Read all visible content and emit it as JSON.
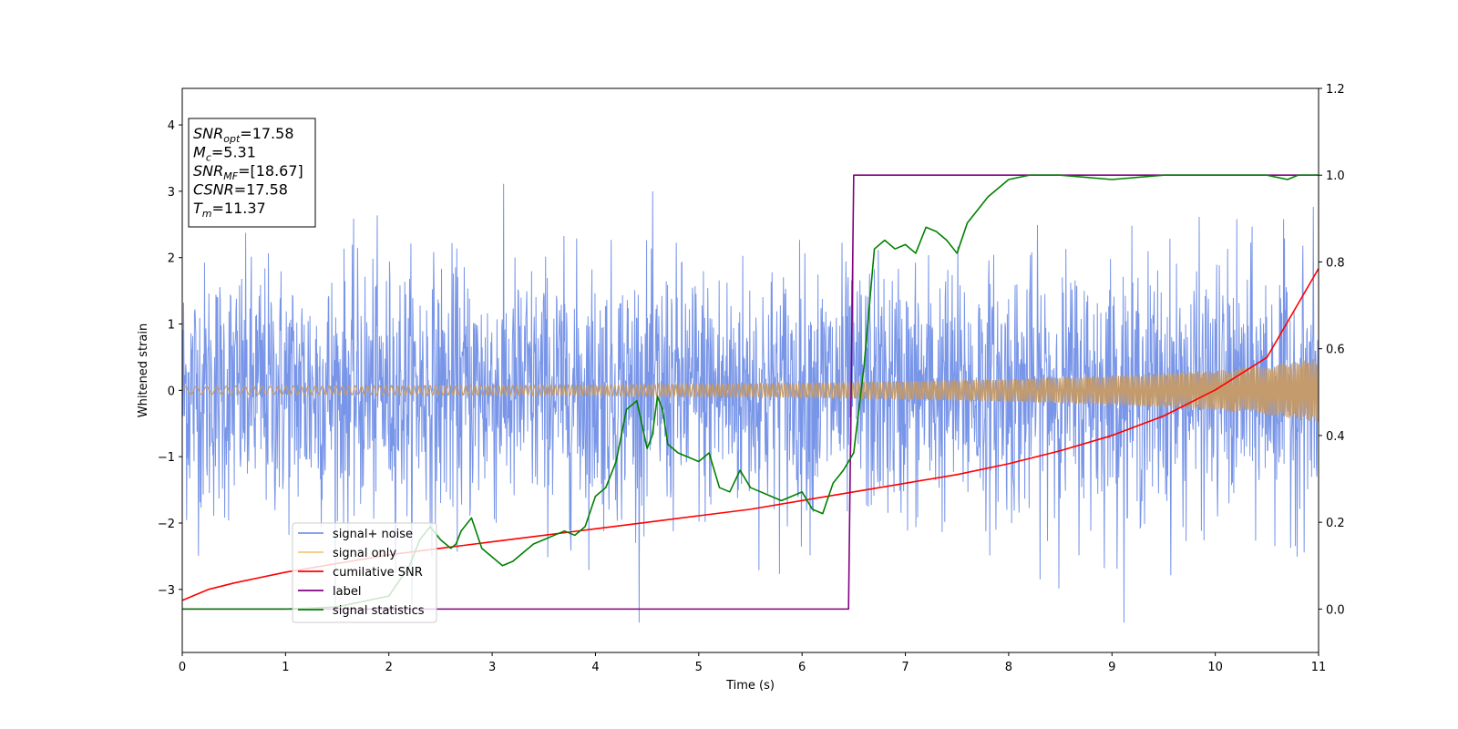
{
  "chart_data": {
    "type": "line",
    "xlabel": "Time (s)",
    "ylabel": "Whitened strain",
    "xlim": [
      0,
      11
    ],
    "ylim_left": [
      -3.95,
      4.55
    ],
    "ylim_right": [
      -0.1,
      1.2
    ],
    "x_ticks": [
      0,
      1,
      2,
      3,
      4,
      5,
      6,
      7,
      8,
      9,
      10,
      11
    ],
    "y_ticks_left": [
      -3,
      -2,
      -1,
      0,
      1,
      2,
      3,
      4
    ],
    "y_ticks_right": [
      0.0,
      0.2,
      0.4,
      0.6,
      0.8,
      1.0,
      1.2
    ],
    "x_tick_labels": [
      "0",
      "1",
      "2",
      "3",
      "4",
      "5",
      "6",
      "7",
      "8",
      "9",
      "10",
      "11"
    ],
    "y_tick_labels_left": [
      "−3",
      "−2",
      "−1",
      "0",
      "1",
      "2",
      "3",
      "4"
    ],
    "y_tick_labels_right": [
      "0.0",
      "0.2",
      "0.4",
      "0.6",
      "0.8",
      "1.0",
      "1.2"
    ],
    "legend": {
      "placement": "lower-left",
      "entries": [
        {
          "label": "signal+ noise",
          "color": "#7895e8"
        },
        {
          "label": "signal only",
          "color": "#f5c77e"
        },
        {
          "label": "cumilative SNR",
          "color": "#ff0000"
        },
        {
          "label": "label",
          "color": "#800080"
        },
        {
          "label": "signal statistics",
          "color": "#008000"
        }
      ]
    },
    "info_box": {
      "placement": "top-left",
      "lines": [
        {
          "main": "SNR",
          "sub": "opt",
          "rest": "=17.58"
        },
        {
          "main": "M",
          "sub": "c",
          "rest": "=5.31"
        },
        {
          "main": "SNR",
          "sub": "MF",
          "rest": "=[18.67]"
        },
        {
          "main": "CSNR",
          "sub": "",
          "rest": "=17.58"
        },
        {
          "main": "T",
          "sub": "m",
          "rest": "=11.37"
        }
      ]
    },
    "series": [
      {
        "name": "signal+ noise",
        "axis": "left",
        "color": "#7895e8",
        "description_values": {
          "envelope_typical": [
            -1.9,
            2.0
          ],
          "extremes": [
            -3.5,
            3.3
          ]
        }
      },
      {
        "name": "signal only",
        "axis": "left",
        "color": "#c49b6c",
        "envelope": {
          "x": [
            0,
            2,
            4,
            6,
            8,
            9,
            10,
            10.5,
            11
          ],
          "amp": [
            0.06,
            0.07,
            0.08,
            0.11,
            0.17,
            0.22,
            0.3,
            0.37,
            0.48
          ]
        }
      },
      {
        "name": "cumilative SNR",
        "axis": "right",
        "color": "#ff0000",
        "x": [
          0,
          0.25,
          0.5,
          1,
          1.5,
          2,
          2.5,
          3,
          3.5,
          4,
          4.5,
          5,
          5.5,
          6,
          6.5,
          7,
          7.5,
          8,
          8.5,
          9,
          9.5,
          10,
          10.5,
          11
        ],
        "y": [
          0.02,
          0.045,
          0.06,
          0.085,
          0.105,
          0.125,
          0.14,
          0.155,
          0.17,
          0.185,
          0.2,
          0.215,
          0.23,
          0.25,
          0.27,
          0.29,
          0.31,
          0.335,
          0.365,
          0.4,
          0.445,
          0.505,
          0.58,
          0.785
        ]
      },
      {
        "name": "label",
        "axis": "right",
        "color": "#800080",
        "x": [
          0,
          6.45,
          6.5,
          11
        ],
        "y": [
          0,
          0,
          1,
          1
        ]
      },
      {
        "name": "signal statistics",
        "axis": "right",
        "color": "#008000",
        "x": [
          0,
          1.0,
          1.5,
          2.0,
          2.2,
          2.3,
          2.4,
          2.5,
          2.6,
          2.65,
          2.7,
          2.8,
          2.9,
          3.0,
          3.1,
          3.2,
          3.3,
          3.4,
          3.5,
          3.6,
          3.7,
          3.8,
          3.9,
          4.0,
          4.1,
          4.2,
          4.3,
          4.4,
          4.5,
          4.55,
          4.6,
          4.65,
          4.7,
          4.8,
          4.9,
          5.0,
          5.1,
          5.2,
          5.3,
          5.4,
          5.5,
          5.6,
          5.7,
          5.8,
          5.9,
          6.0,
          6.1,
          6.2,
          6.3,
          6.4,
          6.5,
          6.6,
          6.7,
          6.8,
          6.9,
          7.0,
          7.1,
          7.2,
          7.3,
          7.4,
          7.5,
          7.6,
          7.7,
          7.8,
          7.9,
          8.0,
          8.2,
          8.5,
          9.0,
          9.5,
          10.0,
          10.5,
          10.7,
          10.8,
          11.0
        ],
        "y": [
          0.0,
          0.0,
          0.005,
          0.03,
          0.1,
          0.16,
          0.19,
          0.16,
          0.14,
          0.15,
          0.18,
          0.21,
          0.14,
          0.12,
          0.1,
          0.11,
          0.13,
          0.15,
          0.16,
          0.17,
          0.18,
          0.17,
          0.19,
          0.26,
          0.28,
          0.34,
          0.46,
          0.48,
          0.37,
          0.4,
          0.49,
          0.46,
          0.38,
          0.36,
          0.35,
          0.34,
          0.36,
          0.28,
          0.27,
          0.32,
          0.28,
          0.27,
          0.26,
          0.25,
          0.26,
          0.27,
          0.23,
          0.22,
          0.29,
          0.32,
          0.36,
          0.56,
          0.83,
          0.85,
          0.83,
          0.84,
          0.82,
          0.88,
          0.87,
          0.85,
          0.82,
          0.89,
          0.92,
          0.95,
          0.97,
          0.99,
          1.0,
          1.0,
          0.99,
          1.0,
          1.0,
          1.0,
          0.99,
          1.0,
          1.0
        ]
      }
    ]
  }
}
